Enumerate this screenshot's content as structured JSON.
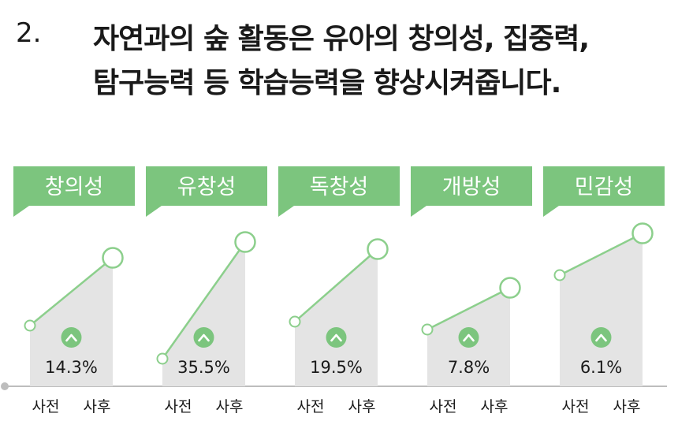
{
  "title": {
    "number": "2.",
    "line1": "자연과의 숲 활동은 유아의 창의성, 집중력,",
    "line2": "탐구능력 등 학습능력을   향상시켜줍니다."
  },
  "colors": {
    "banner": "#7cc57e",
    "line": "#8ccf8c",
    "area": "#e4e4e4",
    "badge": "#7cc57e",
    "axis": "#bdbdbd"
  },
  "chart_data": {
    "type": "line",
    "x_labels": [
      "사전",
      "사후"
    ],
    "panels": [
      {
        "label": "창의성",
        "increase": "14.3%"
      },
      {
        "label": "유창성",
        "increase": "35.5%"
      },
      {
        "label": "독창성",
        "increase": "19.5%"
      },
      {
        "label": "개방성",
        "increase": "7.8%"
      },
      {
        "label": "민감성",
        "increase": "6.1%"
      }
    ]
  }
}
